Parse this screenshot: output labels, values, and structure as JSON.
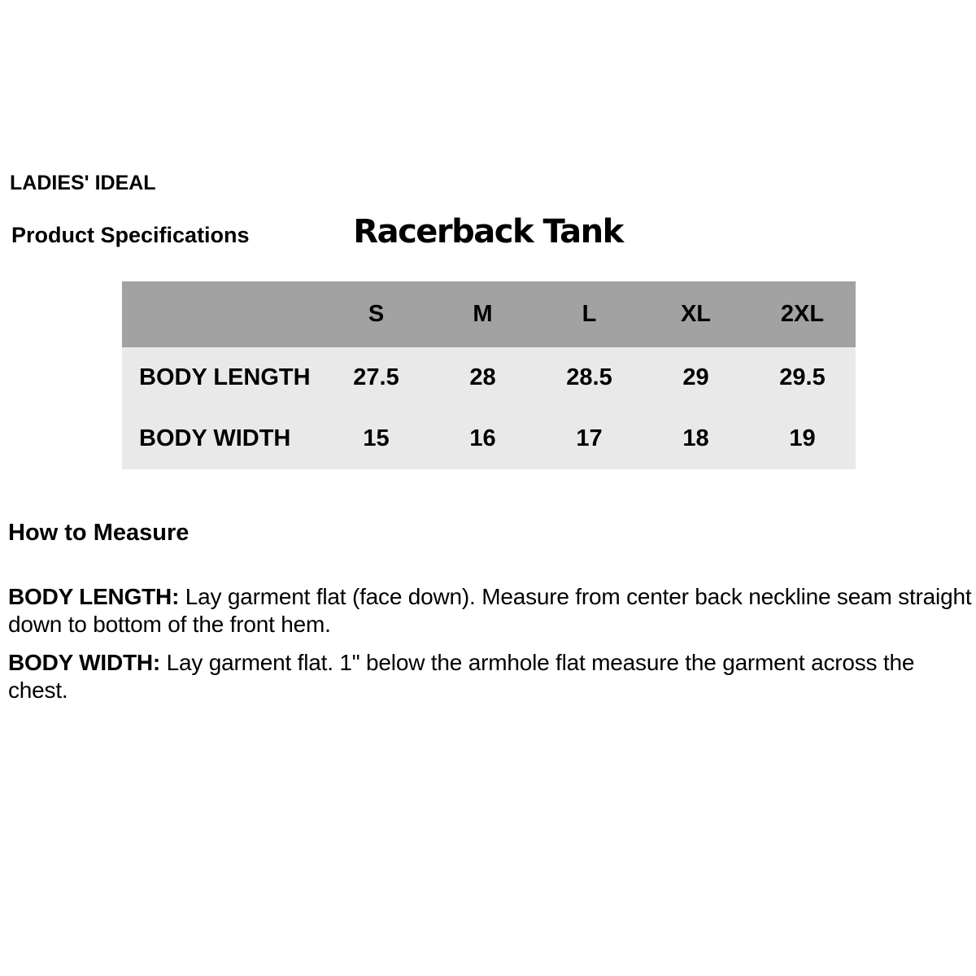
{
  "header": {
    "brand": "LADIES' IDEAL",
    "section_label": "Product Specifications",
    "product_title": "Racerback Tank"
  },
  "spec_table": {
    "columns": [
      "S",
      "M",
      "L",
      "XL",
      "2XL"
    ],
    "rows": [
      {
        "label": "BODY LENGTH",
        "values": [
          "27.5",
          "28",
          "28.5",
          "29",
          "29.5"
        ]
      },
      {
        "label": "BODY WIDTH",
        "values": [
          "15",
          "16",
          "17",
          "18",
          "19"
        ]
      }
    ],
    "colors": {
      "header_bg": "#a2a2a2",
      "row_bg": "#e9e9e9",
      "text": "#000000",
      "page_bg": "#ffffff"
    }
  },
  "how_to_measure": {
    "heading": "How to Measure",
    "instructions": [
      {
        "term": "BODY LENGTH:",
        "description": "Lay garment flat (face down). Measure from center back neckline seam straight down to bottom of the front hem."
      },
      {
        "term": "BODY WIDTH:",
        "description": "Lay garment flat. 1\" below the armhole flat measure the garment across the chest."
      }
    ]
  }
}
